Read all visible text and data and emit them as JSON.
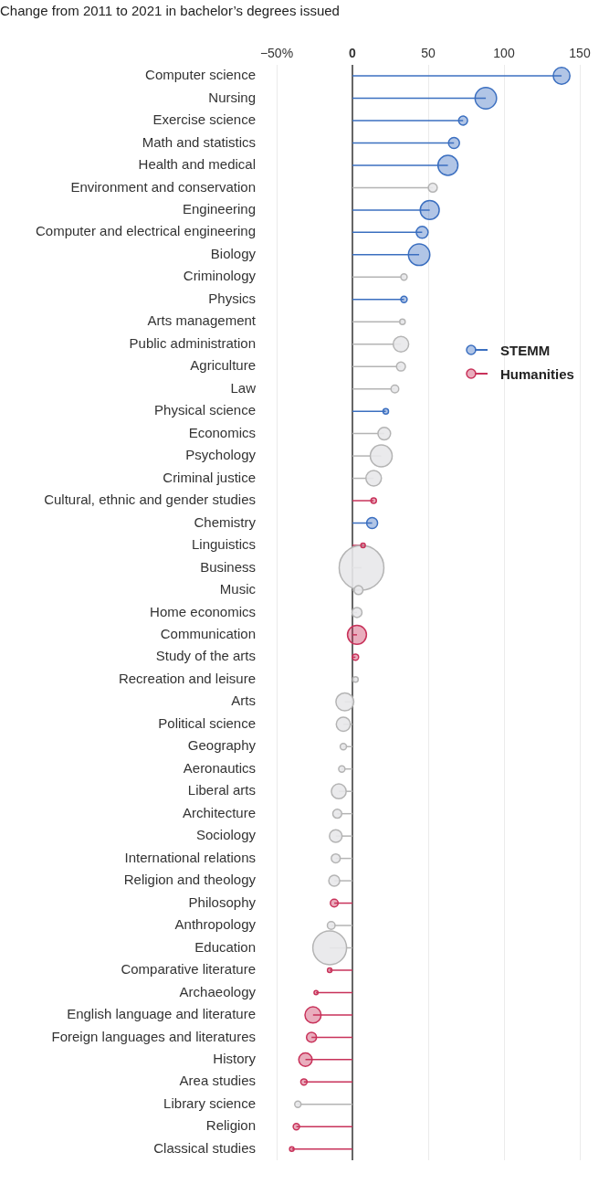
{
  "chart_data": {
    "type": "lollipop",
    "orientation": "horizontal",
    "title": "Change from 2011 to 2021 in bachelor’s degrees issued",
    "categories": [
      "Computer science",
      "Nursing",
      "Exercise science",
      "Math and statistics",
      "Health and medical",
      "Environment and conservation",
      "Engineering",
      "Computer and electrical engineering",
      "Biology",
      "Criminology",
      "Physics",
      "Arts management",
      "Public administration",
      "Agriculture",
      "Law",
      "Physical science",
      "Economics",
      "Psychology",
      "Criminal justice",
      "Cultural, ethnic and gender studies",
      "Chemistry",
      "Linguistics",
      "Business",
      "Music",
      "Home economics",
      "Communication",
      "Study of the arts",
      "Recreation and leisure",
      "Arts",
      "Political science",
      "Geography",
      "Aeronautics",
      "Liberal arts",
      "Architecture",
      "Sociology",
      "International relations",
      "Religion and theology",
      "Philosophy",
      "Anthropology",
      "Education",
      "Comparative literature",
      "Archaeology",
      "English language and literature",
      "Foreign languages and literatures",
      "History",
      "Area studies",
      "Library science",
      "Religion",
      "Classical studies"
    ],
    "xlim": [
      -50,
      150
    ],
    "xticks": [
      {
        "value": -50,
        "label": "−50%"
      },
      0,
      50,
      100,
      150
    ],
    "grid": "x",
    "legend": "right",
    "marker": "circle",
    "series": [
      {
        "name": "STEMM",
        "color": "#3b6fc0",
        "values": [
          138,
          88,
          73,
          67,
          63,
          null,
          51,
          46,
          44,
          null,
          34,
          null,
          null,
          null,
          null,
          22,
          null,
          null,
          null,
          null,
          13,
          null,
          null,
          null,
          null,
          null,
          null,
          null,
          null,
          null,
          null,
          null,
          null,
          null,
          null,
          null,
          null,
          null,
          null,
          null,
          null,
          null,
          null,
          null,
          null,
          null,
          null,
          null,
          null
        ],
        "sizes": [
          0.14,
          0.23,
          0.04,
          0.06,
          0.2,
          null,
          0.18,
          0.07,
          0.23,
          null,
          0.02,
          null,
          null,
          null,
          null,
          0.015,
          null,
          null,
          null,
          null,
          0.06,
          null,
          null,
          null,
          null,
          null,
          null,
          null,
          null,
          null,
          null,
          null,
          null,
          null,
          null,
          null,
          null,
          null,
          null,
          null,
          null,
          null,
          null,
          null,
          null,
          null,
          null,
          null,
          null
        ]
      },
      {
        "name": "Humanities",
        "color": "#c8325a",
        "values": [
          null,
          null,
          null,
          null,
          null,
          null,
          null,
          null,
          null,
          null,
          null,
          null,
          null,
          null,
          null,
          null,
          null,
          null,
          null,
          14,
          null,
          7,
          null,
          null,
          null,
          3,
          2,
          null,
          null,
          null,
          null,
          null,
          null,
          null,
          null,
          null,
          null,
          -12,
          null,
          null,
          -15,
          -24,
          -26,
          -27,
          -31,
          -32,
          null,
          -37,
          -40
        ],
        "sizes": [
          null,
          null,
          null,
          null,
          null,
          null,
          null,
          null,
          null,
          null,
          null,
          null,
          null,
          null,
          null,
          null,
          null,
          null,
          null,
          0.015,
          null,
          0.01,
          null,
          null,
          null,
          0.18,
          0.02,
          null,
          null,
          null,
          null,
          null,
          null,
          null,
          null,
          null,
          null,
          0.03,
          null,
          null,
          0.01,
          0.008,
          0.13,
          0.05,
          0.09,
          0.02,
          null,
          0.02,
          0.01
        ]
      },
      {
        "color": "#b4b4b4",
        "values": [
          null,
          null,
          null,
          null,
          null,
          53,
          null,
          null,
          null,
          34,
          null,
          33,
          32,
          32,
          28,
          null,
          21,
          19,
          14,
          null,
          null,
          null,
          6,
          4,
          3,
          null,
          null,
          2,
          -5,
          -6,
          -6,
          -7,
          -9,
          -10,
          -11,
          -11,
          -12,
          null,
          -14,
          -15,
          null,
          null,
          null,
          null,
          null,
          null,
          -36,
          null,
          null
        ],
        "sizes": [
          null,
          null,
          null,
          null,
          null,
          0.04,
          null,
          null,
          null,
          0.02,
          null,
          0.015,
          0.12,
          0.04,
          0.03,
          null,
          0.08,
          0.24,
          0.12,
          null,
          null,
          null,
          1,
          0.04,
          0.05,
          null,
          null,
          0.015,
          0.16,
          0.1,
          0.02,
          0.02,
          0.11,
          0.04,
          0.08,
          0.04,
          0.06,
          null,
          0.03,
          0.57,
          null,
          null,
          null,
          null,
          null,
          null,
          0.02,
          null,
          null
        ]
      }
    ]
  }
}
